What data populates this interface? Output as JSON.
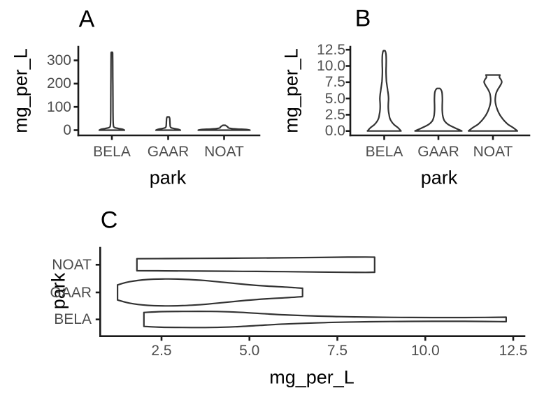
{
  "figure": {
    "background": "#ffffff",
    "panel_labels": [
      "A",
      "B",
      "C"
    ]
  },
  "colors": {
    "axis_line": "#1a1a1a",
    "tick_mark": "#1a1a1a",
    "tick_label": "#4d4d4d",
    "axis_title": "#000000",
    "panel_label": "#000000",
    "violin_stroke": "#333333",
    "violin_fill": "#ffffff"
  },
  "chart_data": [
    {
      "type": "violin",
      "panel": "A",
      "orientation": "vertical",
      "xlabel": "park",
      "ylabel": "mg_per_L",
      "categories": [
        "BELA",
        "GAAR",
        "NOAT"
      ],
      "x_tick_labels": [
        "BELA",
        "GAAR",
        "NOAT"
      ],
      "y_tick_labels": [
        "0",
        "100",
        "200",
        "300"
      ],
      "y_tick_values": [
        0,
        100,
        200,
        300
      ],
      "ylim": [
        0,
        359
      ],
      "grid": false,
      "legend": false,
      "series": [
        {
          "name": "BELA",
          "min": 0,
          "max": 335,
          "profile": [
            [
              0,
              1
            ],
            [
              4,
              0.85
            ],
            [
              7,
              0.55
            ],
            [
              10,
              0.28
            ],
            [
              14,
              0.15
            ],
            [
              20,
              0.12
            ],
            [
              40,
              0.1
            ],
            [
              80,
              0.09
            ],
            [
              150,
              0.085
            ],
            [
              230,
              0.075
            ],
            [
              300,
              0.065
            ],
            [
              330,
              0.06
            ],
            [
              335,
              0.05
            ]
          ]
        },
        {
          "name": "GAAR",
          "min": 0,
          "max": 57,
          "profile": [
            [
              0,
              1
            ],
            [
              4,
              0.8
            ],
            [
              7,
              0.5
            ],
            [
              10,
              0.26
            ],
            [
              14,
              0.18
            ],
            [
              20,
              0.16
            ],
            [
              30,
              0.15
            ],
            [
              42,
              0.14
            ],
            [
              52,
              0.12
            ],
            [
              57,
              0.08
            ]
          ]
        },
        {
          "name": "NOAT",
          "min": 0,
          "max": 21,
          "profile": [
            [
              0,
              1
            ],
            [
              3,
              0.85
            ],
            [
              5,
              0.5
            ],
            [
              8,
              0.22
            ],
            [
              11,
              0.15
            ],
            [
              14,
              0.14
            ],
            [
              17,
              0.1
            ],
            [
              20,
              0.06
            ],
            [
              21,
              0.04
            ]
          ]
        }
      ]
    },
    {
      "type": "violin",
      "panel": "B",
      "orientation": "vertical",
      "xlabel": "park",
      "ylabel": "mg_per_L",
      "categories": [
        "BELA",
        "GAAR",
        "NOAT"
      ],
      "x_tick_labels": [
        "BELA",
        "GAAR",
        "NOAT"
      ],
      "y_tick_labels": [
        "0.0",
        "2.5",
        "5.0",
        "7.5",
        "10.0",
        "12.5"
      ],
      "y_tick_values": [
        0,
        2.5,
        5,
        7.5,
        10,
        12.5
      ],
      "ylim": [
        0,
        12.9
      ],
      "grid": false,
      "legend": false,
      "series": [
        {
          "name": "BELA",
          "min": 0,
          "max": 12.35,
          "profile": [
            [
              0,
              1
            ],
            [
              0.5,
              0.82
            ],
            [
              1,
              0.58
            ],
            [
              1.5,
              0.42
            ],
            [
              2,
              0.33
            ],
            [
              2.5,
              0.29
            ],
            [
              3,
              0.26
            ],
            [
              3.6,
              0.24
            ],
            [
              4.3,
              0.245
            ],
            [
              5,
              0.26
            ],
            [
              5.6,
              0.24
            ],
            [
              6.2,
              0.21
            ],
            [
              6.9,
              0.17
            ],
            [
              7.6,
              0.135
            ],
            [
              8.4,
              0.115
            ],
            [
              9.2,
              0.11
            ],
            [
              10,
              0.115
            ],
            [
              10.8,
              0.12
            ],
            [
              11.4,
              0.115
            ],
            [
              11.9,
              0.1
            ],
            [
              12.2,
              0.075
            ],
            [
              12.35,
              0.04
            ]
          ]
        },
        {
          "name": "GAAR",
          "min": 0,
          "max": 6.55,
          "profile": [
            [
              0,
              1
            ],
            [
              0.5,
              0.69
            ],
            [
              1,
              0.42
            ],
            [
              1.5,
              0.27
            ],
            [
              2,
              0.21
            ],
            [
              2.5,
              0.18
            ],
            [
              3.2,
              0.165
            ],
            [
              4,
              0.165
            ],
            [
              4.8,
              0.17
            ],
            [
              5.5,
              0.165
            ],
            [
              6,
              0.15
            ],
            [
              6.35,
              0.11
            ],
            [
              6.55,
              0.06
            ]
          ]
        },
        {
          "name": "NOAT",
          "min": 0,
          "max": 8.6,
          "profile": [
            [
              0,
              1
            ],
            [
              0.5,
              0.83
            ],
            [
              1,
              0.62
            ],
            [
              1.5,
              0.48
            ],
            [
              2,
              0.37
            ],
            [
              2.5,
              0.28
            ],
            [
              3,
              0.21
            ],
            [
              3.5,
              0.16
            ],
            [
              4,
              0.12
            ],
            [
              4.6,
              0.095
            ],
            [
              5.2,
              0.1
            ],
            [
              5.8,
              0.13
            ],
            [
              6.4,
              0.2
            ],
            [
              7,
              0.3
            ],
            [
              7.5,
              0.36
            ],
            [
              7.9,
              0.33
            ],
            [
              8.2,
              0.27
            ],
            [
              8.45,
              0.27
            ],
            [
              8.6,
              0.29
            ]
          ]
        }
      ]
    },
    {
      "type": "violin",
      "panel": "C",
      "orientation": "horizontal",
      "xlabel": "mg_per_L",
      "ylabel": "park",
      "categories": [
        "NOAT",
        "GAAR",
        "BELA"
      ],
      "y_tick_labels": [
        "NOAT",
        "GAAR",
        "BELA"
      ],
      "x_tick_labels": [
        "2.5",
        "5.0",
        "7.5",
        "10.0",
        "12.5"
      ],
      "x_tick_values": [
        2.5,
        5,
        7.5,
        10,
        12.5
      ],
      "xlim": [
        0.75,
        12.85
      ],
      "grid": false,
      "legend": false,
      "series": [
        {
          "name": "NOAT",
          "min": 1.8,
          "max": 8.56,
          "profile": [
            [
              1.8,
              0.78
            ],
            [
              2.6,
              0.8
            ],
            [
              3.6,
              0.83
            ],
            [
              4.8,
              0.86
            ],
            [
              6,
              0.9
            ],
            [
              7,
              0.95
            ],
            [
              7.8,
              0.99
            ],
            [
              8.3,
              1
            ],
            [
              8.56,
              0.98
            ]
          ]
        },
        {
          "name": "GAAR",
          "min": 1.25,
          "max": 6.51,
          "profile": [
            [
              1.25,
              0.56
            ],
            [
              1.6,
              0.8
            ],
            [
              2.1,
              0.96
            ],
            [
              2.6,
              1
            ],
            [
              3.1,
              0.98
            ],
            [
              3.7,
              0.89
            ],
            [
              4.3,
              0.74
            ],
            [
              4.9,
              0.59
            ],
            [
              5.5,
              0.47
            ],
            [
              6,
              0.4
            ],
            [
              6.3,
              0.35
            ],
            [
              6.51,
              0.31
            ]
          ]
        },
        {
          "name": "BELA",
          "min": 2.0,
          "max": 12.3,
          "profile": [
            [
              2,
              0.87
            ],
            [
              2.5,
              0.97
            ],
            [
              3.1,
              1
            ],
            [
              3.9,
              1
            ],
            [
              4.6,
              0.91
            ],
            [
              5.3,
              0.74
            ],
            [
              6,
              0.57
            ],
            [
              6.8,
              0.44
            ],
            [
              7.6,
              0.35
            ],
            [
              8.4,
              0.29
            ],
            [
              9.3,
              0.25
            ],
            [
              10.2,
              0.235
            ],
            [
              11,
              0.235
            ],
            [
              11.7,
              0.25
            ],
            [
              12.1,
              0.27
            ],
            [
              12.3,
              0.28
            ]
          ]
        }
      ]
    }
  ]
}
